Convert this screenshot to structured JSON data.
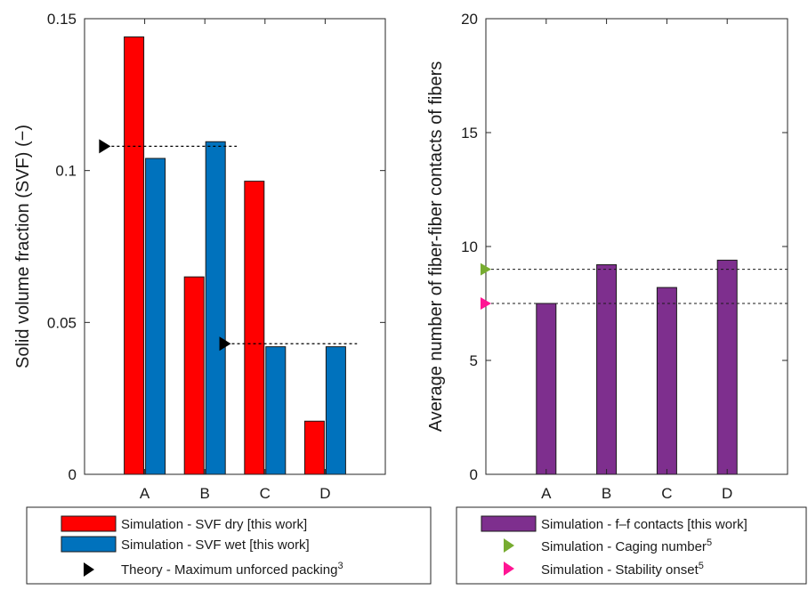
{
  "chart_data": [
    {
      "type": "bar",
      "categories": [
        "A",
        "B",
        "C",
        "D"
      ],
      "ylabel": "Solid volume fraction (SVF) (−)",
      "ylim": [
        0,
        0.15
      ],
      "yticks": [
        0,
        0.05,
        0.1,
        0.15
      ],
      "ytick_labels": [
        "0",
        "0.05",
        "0.1",
        "0.15"
      ],
      "series": [
        {
          "name": "Simulation - SVF dry [this work]",
          "color": "#ff0000",
          "values": [
            0.144,
            0.065,
            0.0965,
            0.0175
          ]
        },
        {
          "name": "Simulation - SVF wet [this work]",
          "color": "#0072bd",
          "values": [
            0.104,
            0.1095,
            0.042,
            0.042
          ]
        }
      ],
      "reference_lines": [
        {
          "name": "Theory - Maximum unforced packing",
          "superscript": "3",
          "marker": "black-triangle",
          "color": "#000000",
          "segments": [
            {
              "y": 0.108,
              "from_category": "A",
              "to_category": "B"
            },
            {
              "y": 0.043,
              "from_category": "C",
              "to_category": "D"
            }
          ]
        }
      ],
      "legend_position": "bottom"
    },
    {
      "type": "bar",
      "categories": [
        "A",
        "B",
        "C",
        "D"
      ],
      "ylabel": "Average number of fiber-fiber contacts of fibers",
      "ylim": [
        0,
        20
      ],
      "yticks": [
        0,
        5,
        10,
        15,
        20
      ],
      "ytick_labels": [
        "0",
        "5",
        "10",
        "15",
        "20"
      ],
      "series": [
        {
          "name": "Simulation - f–f contacts [this work]",
          "color": "#7e2f8e",
          "values": [
            7.5,
            9.2,
            8.2,
            9.4
          ]
        }
      ],
      "reference_lines": [
        {
          "name": "Simulation - Caging number",
          "superscript": "5",
          "marker": "green-triangle",
          "color": "#77ac30",
          "y": 9
        },
        {
          "name": "Simulation - Stability onset",
          "superscript": "5",
          "marker": "magenta-triangle",
          "color": "#ff1493",
          "y": 7.5
        }
      ],
      "legend_position": "bottom"
    }
  ]
}
